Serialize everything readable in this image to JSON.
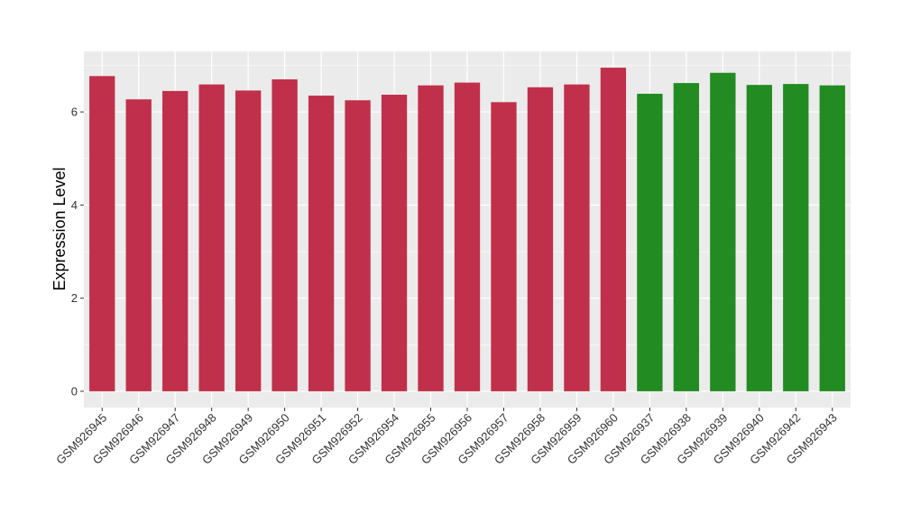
{
  "chart_data": {
    "type": "bar",
    "title": "",
    "xlabel": "",
    "ylabel": "Expression Level",
    "ylim": [
      -0.35,
      7.3
    ],
    "yticks": [
      0,
      2,
      4,
      6
    ],
    "grid": true,
    "categories": [
      "GSM926945",
      "GSM926946",
      "GSM926947",
      "GSM926948",
      "GSM926949",
      "GSM926950",
      "GSM926951",
      "GSM926952",
      "GSM926954",
      "GSM926955",
      "GSM926956",
      "GSM926957",
      "GSM926958",
      "GSM926959",
      "GSM926960",
      "GSM926937",
      "GSM926938",
      "GSM926939",
      "GSM926940",
      "GSM926942",
      "GSM926943"
    ],
    "values": [
      6.77,
      6.27,
      6.45,
      6.59,
      6.46,
      6.7,
      6.35,
      6.25,
      6.37,
      6.57,
      6.63,
      6.21,
      6.53,
      6.59,
      6.95,
      6.39,
      6.62,
      6.84,
      6.58,
      6.6,
      6.57
    ],
    "bar_colors": [
      "#c0304a",
      "#c0304a",
      "#c0304a",
      "#c0304a",
      "#c0304a",
      "#c0304a",
      "#c0304a",
      "#c0304a",
      "#c0304a",
      "#c0304a",
      "#c0304a",
      "#c0304a",
      "#c0304a",
      "#c0304a",
      "#c0304a",
      "#228b22",
      "#228b22",
      "#228b22",
      "#228b22",
      "#228b22",
      "#228b22"
    ],
    "panel_background": "#ebebeb",
    "grid_color": "#ffffff"
  }
}
